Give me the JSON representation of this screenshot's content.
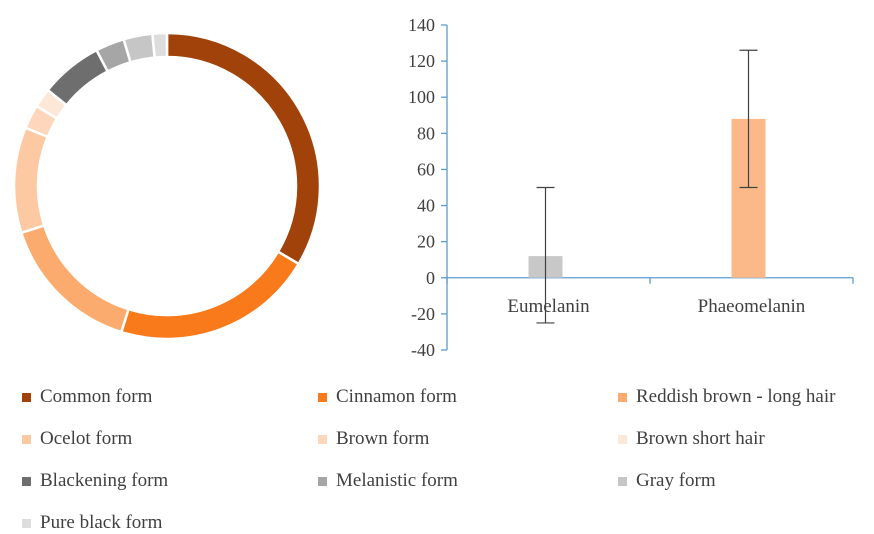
{
  "chart_data": [
    {
      "type": "pie",
      "variant": "donut",
      "categories": [
        "Common form",
        "Cinnamon form",
        "Reddish brown - long hair",
        "Ocelot form",
        "Brown form",
        "Brown short hair",
        "Blackening form",
        "Melanistic form",
        "Gray form",
        "Pure black form"
      ],
      "values": [
        33,
        21,
        15,
        11,
        2.5,
        2,
        6.5,
        3,
        3,
        1.5
      ],
      "colors": [
        "#a0420a",
        "#f97a1a",
        "#fcab6e",
        "#fdc9a2",
        "#fdd6bb",
        "#fde8d8",
        "#6e6e6e",
        "#a6a6a6",
        "#c6c6c6",
        "#dddddd"
      ],
      "legend": "bottom"
    },
    {
      "type": "bar",
      "categories": [
        "Eumelanin",
        "Phaeomelanin"
      ],
      "values": [
        12,
        88
      ],
      "error_low": [
        -25,
        50
      ],
      "error_high": [
        50,
        126
      ],
      "colors": [
        "#c8c8c8",
        "#fbb98a"
      ],
      "ylim": [
        -40,
        140
      ],
      "yticks": [
        "140",
        "120",
        "100",
        "80",
        "60",
        "40",
        "20",
        "0",
        "-20",
        "-40"
      ],
      "grid": false
    }
  ]
}
